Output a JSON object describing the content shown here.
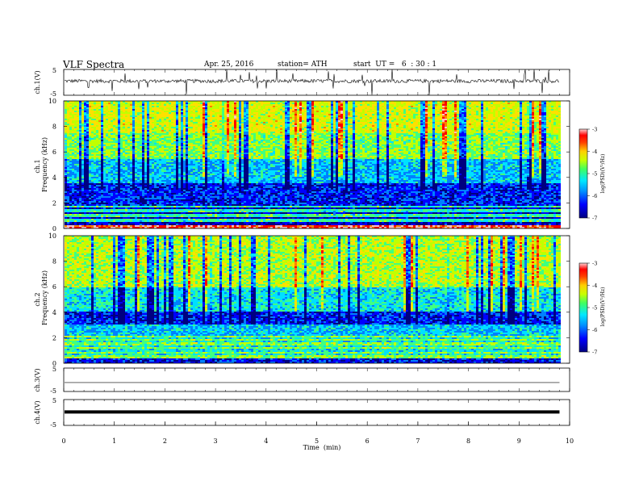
{
  "header": {
    "title": "VLF Spectra",
    "date": "Apr. 25, 2016",
    "station": "station= ATH",
    "start_ut": "start  UT =   6  : 30 : 1"
  },
  "colors": {
    "spectrum_colormap": [
      "#000080",
      "#0000ff",
      "#0080ff",
      "#00e0ff",
      "#40ff80",
      "#c0ff00",
      "#ffe000",
      "#ff8000",
      "#ff0000",
      "#ffc0c0"
    ],
    "trace_color": "#000000"
  },
  "chart_data": [
    {
      "type": "line",
      "id": "ch1-waveform",
      "ylabel": "ch.1(V)",
      "ylim": [
        -5,
        5
      ],
      "yticks": [
        "5",
        "-5"
      ],
      "xlim": [
        0,
        10
      ],
      "x_end_min": 9.8,
      "description_signal": "noisy waveform centered near 0.5 V with spikes"
    },
    {
      "type": "heatmap",
      "id": "ch1-spectrogram",
      "ylabel_top": "ch.1",
      "ylabel": "Frequency  (kHz)",
      "ylim": [
        0,
        10
      ],
      "yticks": [
        "0",
        "2",
        "4",
        "6",
        "8",
        "10"
      ],
      "xlim": [
        0,
        10
      ],
      "x_end_min": 9.8,
      "colorbar": {
        "label": "log(PSD)(V²/Hz)",
        "ticks": [
          "-3",
          "-4",
          "-5",
          "-6",
          "-7"
        ],
        "range": [
          -7,
          -3
        ]
      }
    },
    {
      "type": "heatmap",
      "id": "ch2-spectrogram",
      "ylabel_top": "ch.2",
      "ylabel": "Frequency  (kHz)",
      "ylim": [
        0,
        10
      ],
      "yticks": [
        "0",
        "2",
        "4",
        "6",
        "8",
        "10"
      ],
      "xlim": [
        0,
        10
      ],
      "x_end_min": 9.8,
      "colorbar": {
        "label": "log(PSD)(V²/Hz)",
        "ticks": [
          "-3",
          "-4",
          "-5",
          "-6",
          "-7"
        ],
        "range": [
          -7,
          -3
        ]
      }
    },
    {
      "type": "line",
      "id": "ch3-waveform",
      "ylabel": "ch.3(V)",
      "ylim": [
        -5,
        5
      ],
      "yticks": [
        "5",
        "-5"
      ],
      "xlim": [
        0,
        10
      ],
      "x_end_min": 9.8,
      "level": -1.2
    },
    {
      "type": "line",
      "id": "ch4-waveform",
      "ylabel": "ch.4(V)",
      "ylim": [
        -5,
        5
      ],
      "yticks": [
        "5",
        "-5"
      ],
      "xlim": [
        0,
        10
      ],
      "x_end_min": 9.8,
      "level": 0.2
    }
  ],
  "xaxis": {
    "label": "Time  (min)",
    "ticks": [
      "0",
      "1",
      "2",
      "3",
      "4",
      "5",
      "6",
      "7",
      "8",
      "9",
      "10"
    ]
  }
}
